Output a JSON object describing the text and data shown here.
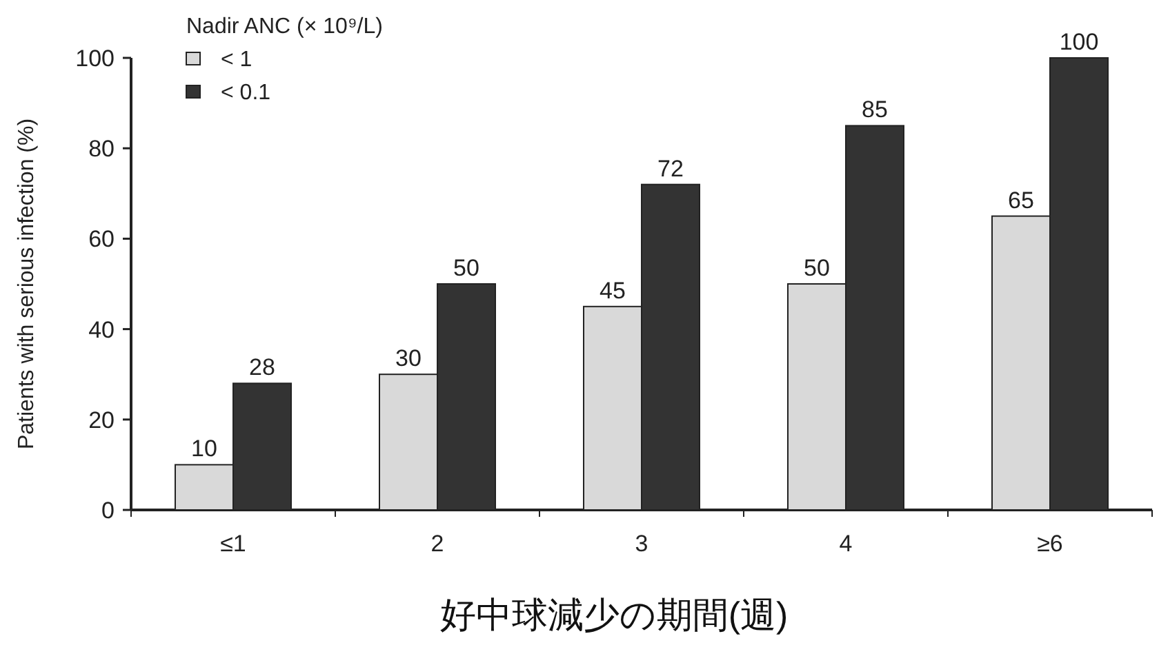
{
  "chart_data": {
    "type": "bar",
    "ylabel": "Patients with serious infection (%)",
    "xlabel": "好中球減少の期間(週)",
    "legend_title": "Nadir ANC (× 10⁹/L)",
    "categories": [
      "≤1",
      "2",
      "3",
      "4",
      "≥6"
    ],
    "series": [
      {
        "name": "< 1",
        "color": "#d9d9d9",
        "values": [
          10,
          30,
          45,
          50,
          65
        ]
      },
      {
        "name": "< 0.1",
        "color": "#333333",
        "values": [
          28,
          50,
          72,
          85,
          100
        ]
      }
    ],
    "ylim": [
      0,
      100
    ],
    "yticks": [
      0,
      20,
      40,
      60,
      80,
      100
    ],
    "data_labels": true,
    "legend": "top left",
    "grid": false
  }
}
